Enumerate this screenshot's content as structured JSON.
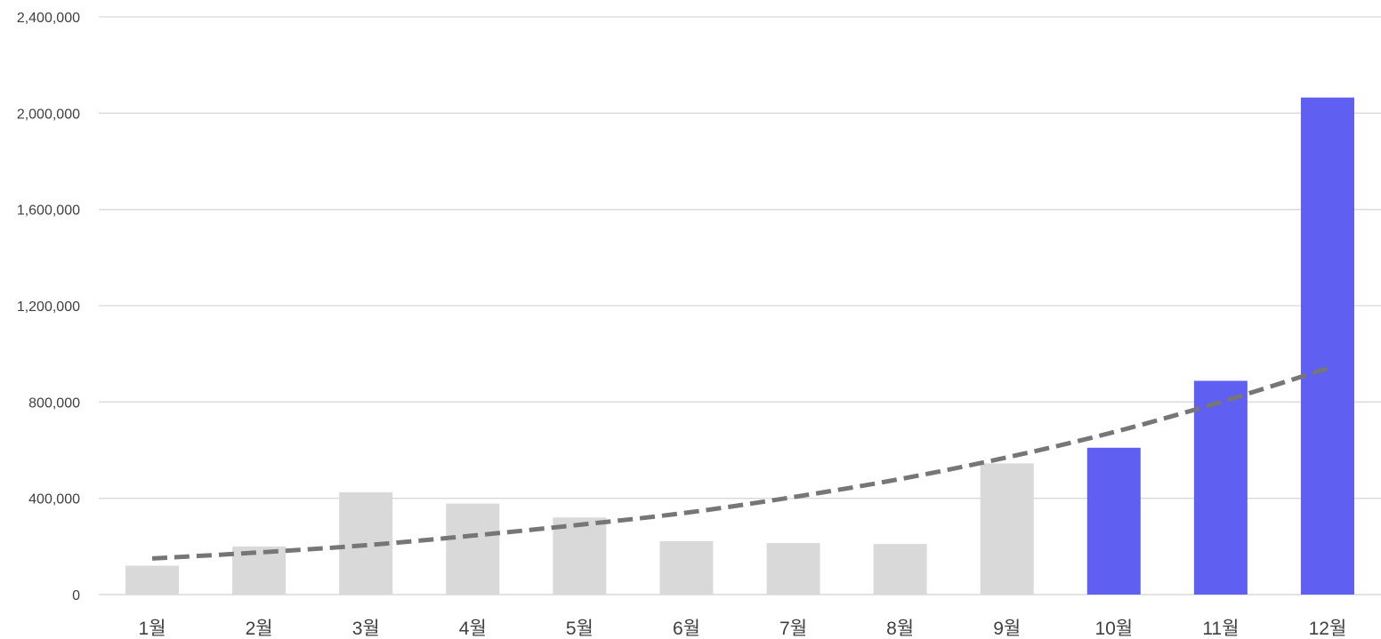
{
  "chart_data": {
    "type": "bar",
    "title": "",
    "xlabel": "",
    "ylabel": "",
    "categories": [
      "1월",
      "2월",
      "3월",
      "4월",
      "5월",
      "6월",
      "7월",
      "8월",
      "9월",
      "10월",
      "11월",
      "12월"
    ],
    "values": [
      120000,
      200000,
      425000,
      378000,
      320000,
      222000,
      214000,
      210000,
      545000,
      610000,
      888000,
      2065000
    ],
    "highlight_from_index": 9,
    "ylim": [
      0,
      2400000
    ],
    "yticks": [
      0,
      400000,
      800000,
      1200000,
      1600000,
      2000000,
      2400000
    ],
    "ytick_labels": [
      "0",
      "400,000",
      "800,000",
      "1,200,000",
      "1,600,000",
      "2,000,000",
      "2,400,000"
    ],
    "grid": true,
    "legend": "none",
    "trendline": {
      "type": "exponential",
      "style": "dashed",
      "values": [
        150000,
        175000,
        205000,
        245000,
        290000,
        340000,
        405000,
        480000,
        570000,
        675000,
        800000,
        940000
      ]
    },
    "colors": {
      "bar_default": "#d9d9d9",
      "bar_highlight": "#5f5ff2",
      "trendline": "#767676",
      "grid": "#d9d9d9",
      "tick_text": "#404040"
    }
  }
}
